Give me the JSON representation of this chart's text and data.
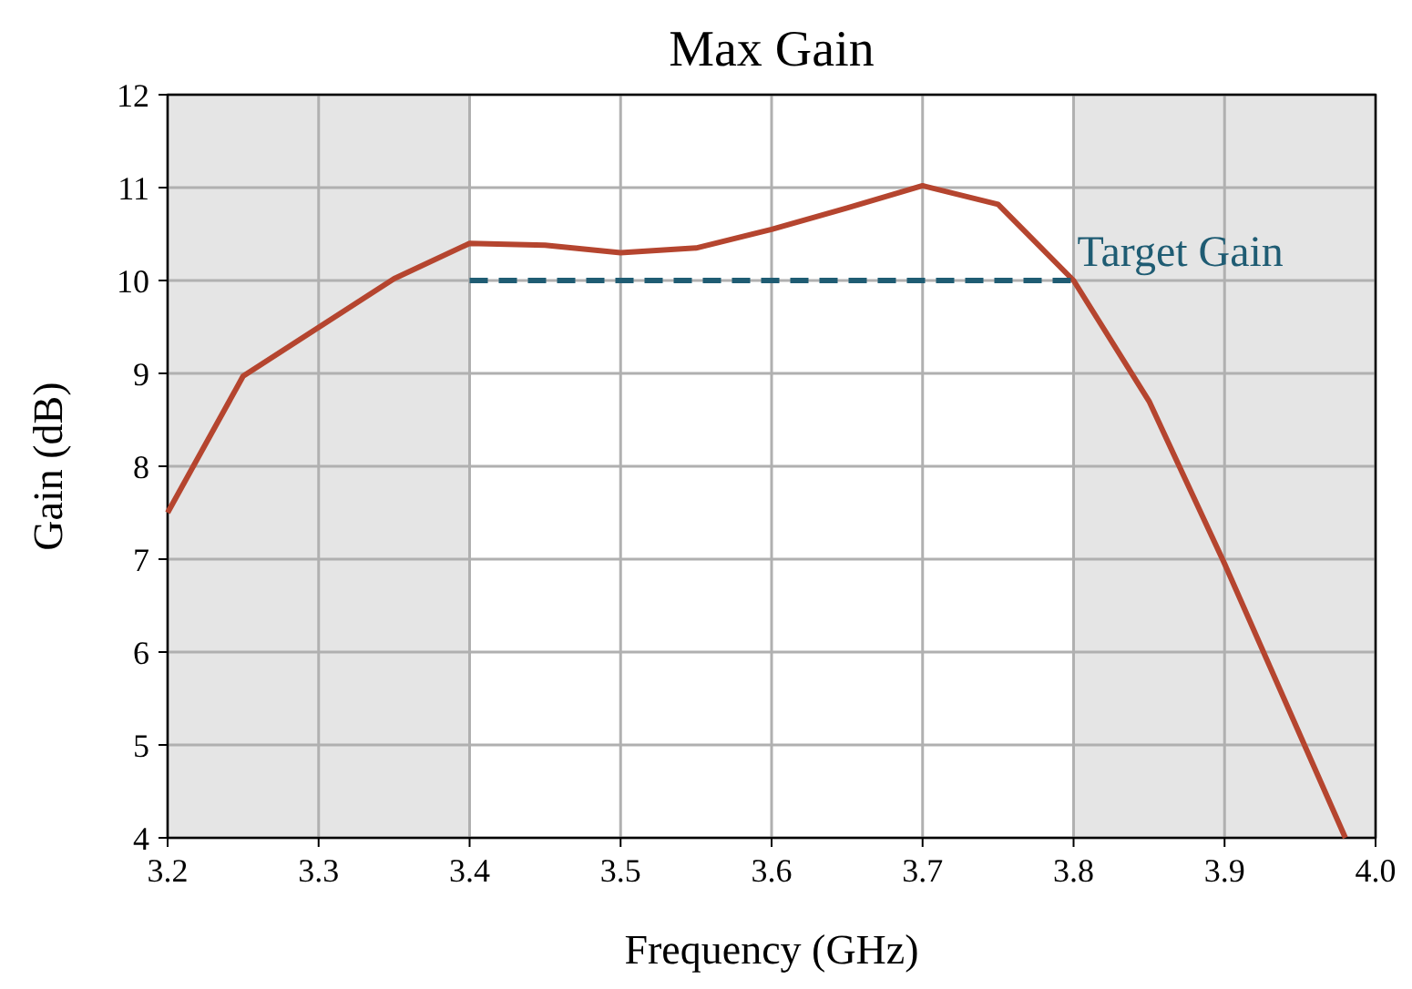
{
  "chart_data": {
    "type": "line",
    "title": "Max Gain",
    "xlabel": "Frequency (GHz)",
    "ylabel": "Gain (dB)",
    "xlim": [
      3.2,
      4.0
    ],
    "xticks": [
      3.2,
      3.3,
      3.4,
      3.5,
      3.6,
      3.7,
      3.8,
      3.9,
      {
        "value": 4.0,
        "label": "4.0"
      }
    ],
    "ylim": [
      4,
      12
    ],
    "yticks": [
      4,
      5,
      6,
      7,
      8,
      9,
      10,
      11,
      12
    ],
    "grid": true,
    "legend": false,
    "bands": [
      {
        "axis": "x",
        "from": 3.2,
        "to": 3.4,
        "color": "#e5e5e5"
      },
      {
        "axis": "x",
        "from": 3.8,
        "to": 4.0,
        "color": "#e5e5e5"
      }
    ],
    "series": [
      {
        "color": "#b5452f",
        "line_style": "solid",
        "x": [
          3.2,
          3.25,
          3.35,
          3.4,
          3.45,
          3.5,
          3.55,
          3.6,
          3.65,
          3.7,
          3.75,
          3.8,
          3.85,
          3.9,
          3.98
        ],
        "values": [
          7.5,
          8.97,
          10.02,
          10.4,
          10.38,
          10.3,
          10.35,
          10.55,
          10.78,
          11.02,
          10.82,
          10.0,
          8.7,
          6.95,
          4.0
        ]
      },
      {
        "name": "Target Gain",
        "color": "#1f5c73",
        "line_style": "dashed",
        "x": [
          3.4,
          3.8
        ],
        "values": [
          10,
          10
        ]
      }
    ]
  }
}
